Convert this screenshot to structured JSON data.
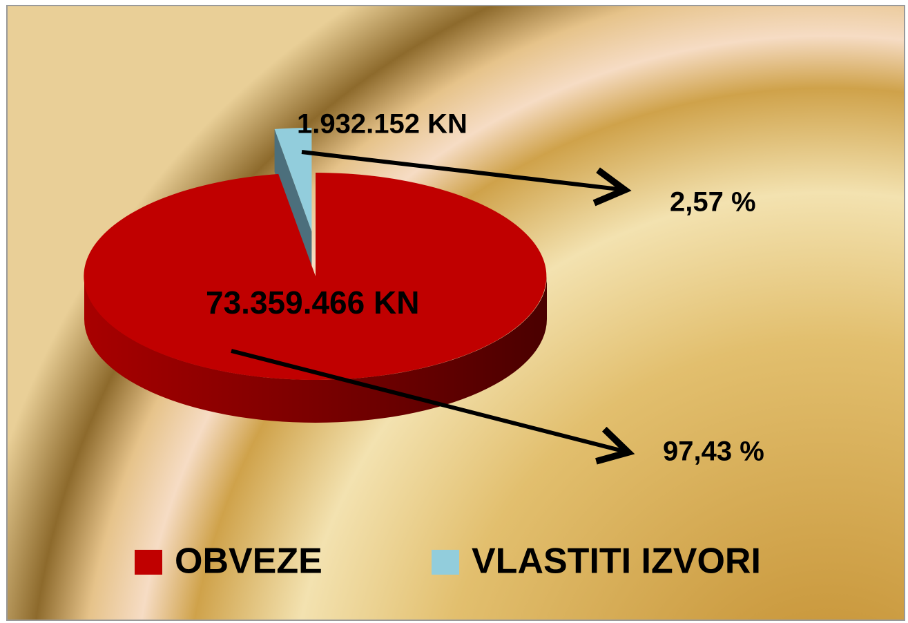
{
  "chart_data": {
    "type": "pie",
    "categories": [
      "OBVEZE",
      "VLASTITI IZVORI"
    ],
    "values": [
      73359466,
      1932152
    ],
    "value_labels": [
      "73.359.466 KN",
      "1.932.152 KN"
    ],
    "percent_labels": [
      "97,43 %",
      "2,57 %"
    ],
    "colors": [
      "#c00000",
      "#92cddc"
    ],
    "legend": "bottom"
  }
}
